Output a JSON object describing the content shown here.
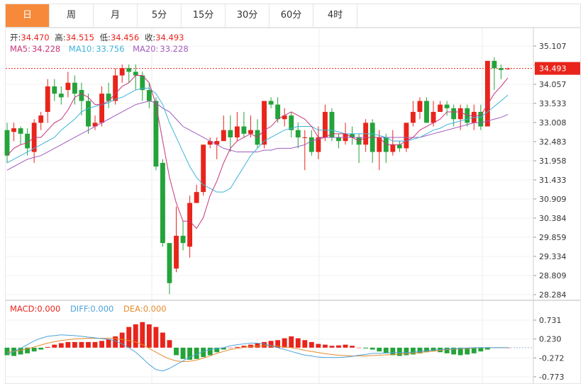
{
  "tabs": [
    {
      "label": "日",
      "active": true
    },
    {
      "label": "周",
      "active": false
    },
    {
      "label": "月",
      "active": false
    },
    {
      "label": "5分",
      "active": false
    },
    {
      "label": "15分",
      "active": false
    },
    {
      "label": "30分",
      "active": false
    },
    {
      "label": "60分",
      "active": false
    },
    {
      "label": "4时",
      "active": false
    }
  ],
  "ohlc_info": {
    "open_label": "开:",
    "open": "34.470",
    "high_label": "高:",
    "high": "34.515",
    "low_label": "低:",
    "low": "34.456",
    "close_label": "收:",
    "close": "34.493"
  },
  "ma_info": {
    "ma5_label": "MA5:",
    "ma5": "34.228",
    "ma10_label": "MA10:",
    "ma10": "33.756",
    "ma20_label": "MA20:",
    "ma20": "33.228"
  },
  "macd_info": {
    "macd_label": "MACD:",
    "macd": "0.000",
    "diff_label": "DIFF:",
    "diff": "0.000",
    "dea_label": "DEA:",
    "dea": "0.000"
  },
  "colors": {
    "up": "#e8241b",
    "down": "#24a33a",
    "ma5": "#c9347a",
    "ma10": "#3eb4dc",
    "ma20": "#a05cc0",
    "diff": "#4ca3dc",
    "dea": "#e58a2b",
    "price_line": "#e8241b"
  },
  "chart_data": [
    {
      "type": "candlestick",
      "price_tick_labels": [
        "35.107",
        "34.582",
        "34.057",
        "33.533",
        "33.008",
        "32.483",
        "31.958",
        "31.433",
        "30.909",
        "30.384",
        "29.859",
        "29.334",
        "28.809",
        "28.284"
      ],
      "ylim": [
        28.284,
        35.107
      ],
      "last_price": "34.493",
      "grid": true,
      "candles": [
        [
          32.8,
          32.1,
          33.0,
          31.9
        ],
        [
          32.75,
          32.85,
          33.0,
          32.5
        ],
        [
          32.85,
          32.7,
          32.9,
          32.4
        ],
        [
          32.7,
          32.3,
          32.85,
          32.1
        ],
        [
          32.2,
          33.0,
          33.1,
          31.9
        ],
        [
          33.0,
          33.2,
          33.3,
          32.8
        ],
        [
          33.3,
          34.0,
          34.2,
          33.0
        ],
        [
          34.0,
          33.8,
          34.2,
          33.6
        ],
        [
          33.8,
          33.7,
          34.0,
          33.5
        ],
        [
          33.9,
          34.1,
          34.4,
          33.7
        ],
        [
          34.1,
          33.8,
          34.3,
          33.5
        ],
        [
          33.9,
          33.6,
          34.1,
          33.2
        ],
        [
          33.6,
          32.9,
          33.8,
          32.7
        ],
        [
          32.9,
          33.0,
          33.2,
          32.8
        ],
        [
          33.0,
          33.8,
          34.0,
          32.9
        ],
        [
          33.8,
          33.6,
          34.1,
          33.4
        ],
        [
          33.6,
          34.3,
          34.5,
          33.5
        ],
        [
          34.3,
          34.5,
          34.6,
          34.1
        ],
        [
          34.5,
          34.4,
          34.6,
          34.1
        ],
        [
          34.4,
          34.3,
          34.6,
          33.9
        ],
        [
          34.3,
          33.9,
          34.4,
          33.6
        ],
        [
          33.9,
          33.6,
          34.1,
          33.4
        ],
        [
          33.6,
          31.8,
          33.7,
          31.7
        ],
        [
          31.9,
          29.7,
          32.0,
          29.6
        ],
        [
          29.7,
          28.6,
          29.7,
          28.3
        ],
        [
          29.0,
          29.9,
          30.7,
          28.9
        ],
        [
          29.9,
          29.7,
          30.3,
          29.5
        ],
        [
          29.6,
          30.8,
          31.0,
          29.3
        ],
        [
          30.8,
          31.1,
          31.3,
          30.8
        ],
        [
          31.1,
          32.4,
          32.4,
          31.0
        ],
        [
          32.4,
          32.5,
          32.6,
          32.3
        ],
        [
          32.4,
          32.5,
          32.6,
          32.0
        ],
        [
          32.5,
          32.8,
          33.2,
          32.5
        ],
        [
          32.8,
          32.6,
          33.2,
          32.2
        ],
        [
          32.6,
          32.9,
          33.3,
          32.5
        ],
        [
          32.9,
          32.7,
          33.3,
          32.6
        ],
        [
          32.7,
          32.8,
          33.2,
          32.6
        ],
        [
          32.8,
          32.4,
          33.1,
          32.3
        ],
        [
          32.4,
          33.6,
          33.6,
          32.3
        ],
        [
          33.6,
          33.5,
          33.7,
          33.4
        ],
        [
          33.5,
          33.1,
          33.7,
          33.0
        ],
        [
          33.1,
          33.2,
          33.4,
          32.9
        ],
        [
          33.2,
          32.8,
          33.3,
          32.6
        ],
        [
          32.8,
          32.6,
          33.0,
          32.3
        ],
        [
          32.6,
          32.6,
          32.8,
          31.7
        ],
        [
          32.6,
          32.2,
          32.8,
          32.1
        ],
        [
          32.2,
          32.6,
          32.9,
          32.0
        ],
        [
          32.6,
          33.3,
          33.5,
          32.5
        ],
        [
          33.3,
          32.6,
          33.4,
          32.5
        ],
        [
          32.6,
          32.5,
          32.7,
          32.3
        ],
        [
          32.5,
          32.7,
          33.0,
          32.4
        ],
        [
          32.7,
          32.6,
          32.9,
          32.4
        ],
        [
          32.6,
          32.4,
          32.7,
          31.9
        ],
        [
          32.4,
          33.0,
          33.1,
          32.2
        ],
        [
          33.0,
          32.2,
          33.1,
          31.9
        ],
        [
          32.2,
          32.6,
          32.8,
          31.7
        ],
        [
          32.6,
          32.2,
          32.7,
          31.9
        ],
        [
          32.2,
          32.4,
          32.8,
          32.1
        ],
        [
          32.4,
          32.3,
          32.5,
          32.2
        ],
        [
          32.3,
          33.0,
          33.0,
          32.2
        ],
        [
          33.0,
          33.3,
          33.6,
          32.9
        ],
        [
          33.3,
          33.6,
          33.7,
          33.1
        ],
        [
          33.6,
          33.0,
          33.7,
          33.0
        ],
        [
          33.0,
          33.3,
          33.6,
          32.9
        ],
        [
          33.3,
          33.5,
          33.6,
          33.3
        ],
        [
          33.5,
          33.4,
          33.6,
          33.2
        ],
        [
          33.4,
          33.1,
          33.5,
          32.9
        ],
        [
          33.1,
          33.4,
          33.5,
          32.8
        ],
        [
          33.4,
          33.0,
          33.5,
          32.9
        ],
        [
          33.0,
          33.3,
          33.5,
          32.8
        ],
        [
          33.3,
          32.9,
          33.5,
          32.8
        ],
        [
          32.9,
          34.7,
          34.7,
          32.9
        ],
        [
          34.7,
          34.5,
          34.8,
          33.9
        ],
        [
          34.5,
          34.45,
          34.6,
          34.2
        ],
        [
          34.47,
          34.49,
          34.515,
          34.456
        ]
      ],
      "ma5": [
        32.1,
        32.3,
        32.4,
        32.45,
        32.6,
        32.6,
        32.8,
        33.0,
        33.1,
        33.35,
        33.7,
        33.8,
        33.7,
        33.5,
        33.5,
        33.6,
        33.8,
        34.0,
        34.1,
        34.3,
        34.3,
        34.1,
        33.5,
        32.5,
        31.5,
        30.8,
        30.3,
        30.3,
        30.1,
        30.4,
        31.0,
        31.4,
        31.9,
        32.3,
        32.5,
        32.6,
        32.7,
        32.6,
        32.8,
        32.9,
        33.1,
        33.2,
        33.3,
        33.2,
        33.1,
        32.9,
        32.6,
        32.6,
        32.7,
        32.7,
        32.7,
        32.6,
        32.5,
        32.6,
        32.6,
        32.6,
        32.4,
        32.4,
        32.4,
        32.5,
        32.6,
        32.8,
        32.9,
        33.0,
        33.1,
        33.3,
        33.3,
        33.3,
        33.2,
        33.2,
        33.2,
        33.5,
        33.8,
        34.0,
        34.23
      ],
      "ma10": [
        31.9,
        32.0,
        32.1,
        32.2,
        32.3,
        32.4,
        32.5,
        32.6,
        32.8,
        32.95,
        33.1,
        33.3,
        33.4,
        33.45,
        33.5,
        33.55,
        33.65,
        33.7,
        33.8,
        33.9,
        33.95,
        33.95,
        33.8,
        33.5,
        33.0,
        32.6,
        32.2,
        31.8,
        31.5,
        31.3,
        31.2,
        31.1,
        31.1,
        31.2,
        31.5,
        31.8,
        32.1,
        32.3,
        32.5,
        32.6,
        32.7,
        32.8,
        32.85,
        32.9,
        32.9,
        32.9,
        32.8,
        32.8,
        32.8,
        32.75,
        32.7,
        32.7,
        32.7,
        32.7,
        32.7,
        32.65,
        32.6,
        32.5,
        32.5,
        32.5,
        32.55,
        32.6,
        32.7,
        32.8,
        32.85,
        32.95,
        33.0,
        33.05,
        33.1,
        33.15,
        33.15,
        33.3,
        33.45,
        33.6,
        33.76
      ],
      "ma20": [
        31.7,
        31.8,
        31.9,
        32.0,
        32.05,
        32.1,
        32.2,
        32.3,
        32.4,
        32.5,
        32.6,
        32.7,
        32.8,
        32.9,
        33.0,
        33.1,
        33.2,
        33.3,
        33.4,
        33.5,
        33.55,
        33.6,
        33.55,
        33.4,
        33.3,
        33.1,
        32.9,
        32.8,
        32.7,
        32.6,
        32.5,
        32.4,
        32.3,
        32.25,
        32.2,
        32.2,
        32.2,
        32.2,
        32.25,
        32.25,
        32.3,
        32.3,
        32.3,
        32.35,
        32.4,
        32.5,
        32.55,
        32.6,
        32.6,
        32.6,
        32.6,
        32.6,
        32.6,
        32.6,
        32.6,
        32.6,
        32.6,
        32.6,
        32.6,
        32.6,
        32.6,
        32.6,
        32.65,
        32.7,
        32.75,
        32.8,
        32.85,
        32.9,
        32.95,
        33.0,
        33.0,
        33.05,
        33.1,
        33.15,
        33.23
      ]
    },
    {
      "type": "bar",
      "macd_tick_labels": [
        "0.731",
        "0.230",
        "-0.272",
        "-0.773"
      ],
      "ylim": [
        -0.773,
        0.731
      ],
      "grid": true,
      "histogram": [
        -0.2,
        -0.22,
        -0.18,
        -0.15,
        -0.1,
        -0.05,
        0.02,
        0.08,
        0.12,
        0.15,
        0.15,
        0.15,
        0.15,
        0.15,
        0.18,
        0.22,
        0.3,
        0.4,
        0.55,
        0.62,
        0.68,
        0.62,
        0.55,
        0.4,
        0.2,
        -0.2,
        -0.3,
        -0.32,
        -0.3,
        -0.25,
        -0.2,
        -0.12,
        -0.05,
        0.0,
        0.02,
        0.05,
        0.08,
        0.12,
        0.15,
        0.18,
        0.2,
        0.25,
        0.3,
        0.25,
        0.2,
        0.15,
        0.1,
        0.08,
        0.05,
        0.06,
        0.08,
        0.05,
        0.0,
        -0.02,
        -0.05,
        -0.1,
        -0.15,
        -0.2,
        -0.22,
        -0.2,
        -0.18,
        -0.15,
        -0.12,
        -0.1,
        -0.12,
        -0.15,
        -0.18,
        -0.2,
        -0.18,
        -0.15,
        -0.1,
        -0.05,
        0.0,
        0.0,
        0.0
      ],
      "diff": [
        -0.18,
        -0.1,
        -0.02,
        0.08,
        0.18,
        0.25,
        0.3,
        0.32,
        0.34,
        0.33,
        0.32,
        0.3,
        0.28,
        0.26,
        0.24,
        0.22,
        0.18,
        0.1,
        0.0,
        -0.12,
        -0.28,
        -0.45,
        -0.58,
        -0.62,
        -0.55,
        -0.45,
        -0.35,
        -0.25,
        -0.18,
        -0.1,
        -0.05,
        -0.02,
        0.0,
        0.05,
        0.08,
        0.1,
        0.12,
        0.12,
        0.1,
        0.05,
        0.0,
        -0.05,
        -0.1,
        -0.15,
        -0.2,
        -0.22,
        -0.25,
        -0.26,
        -0.26,
        -0.26,
        -0.25,
        -0.23,
        -0.2,
        -0.18,
        -0.15,
        -0.15,
        -0.14,
        -0.13,
        -0.13,
        -0.13,
        -0.12,
        -0.1,
        -0.08,
        -0.06,
        -0.05,
        -0.04,
        -0.03,
        -0.02,
        -0.01,
        0.0,
        0.0,
        0.0,
        0.0,
        0.0,
        0.0
      ],
      "dea": [
        -0.12,
        -0.1,
        -0.07,
        -0.03,
        0.02,
        0.07,
        0.12,
        0.16,
        0.19,
        0.21,
        0.23,
        0.24,
        0.25,
        0.25,
        0.25,
        0.25,
        0.24,
        0.22,
        0.19,
        0.15,
        0.08,
        -0.02,
        -0.12,
        -0.22,
        -0.3,
        -0.35,
        -0.37,
        -0.36,
        -0.33,
        -0.28,
        -0.22,
        -0.15,
        -0.1,
        -0.05,
        -0.02,
        0.01,
        0.03,
        0.04,
        0.05,
        0.05,
        0.04,
        0.02,
        0.0,
        -0.03,
        -0.07,
        -0.1,
        -0.13,
        -0.16,
        -0.18,
        -0.2,
        -0.21,
        -0.22,
        -0.22,
        -0.22,
        -0.21,
        -0.2,
        -0.19,
        -0.18,
        -0.17,
        -0.16,
        -0.15,
        -0.13,
        -0.11,
        -0.09,
        -0.07,
        -0.05,
        -0.04,
        -0.03,
        -0.02,
        -0.01,
        0.0,
        0.0,
        0.0,
        0.0,
        0.0
      ]
    }
  ]
}
